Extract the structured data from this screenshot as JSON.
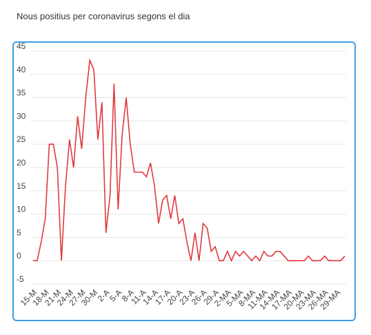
{
  "page_title": "Nous positius per coronavirus segons el dia",
  "chart_data": {
    "type": "line",
    "title": "Nous positius per coronavirus segons el dia",
    "xlabel": "",
    "ylabel": "",
    "ylim": [
      -5,
      45
    ],
    "yticks": [
      -5,
      0,
      5,
      10,
      15,
      20,
      25,
      30,
      35,
      40,
      45
    ],
    "grid": true,
    "line_color": "#e0383e",
    "frame_color": "#3b9ee8",
    "x_tick_labels": [
      "15-M",
      "18-M",
      "21-M",
      "24-M",
      "27-M",
      "30-M",
      "2-A",
      "5-A",
      "8-A",
      "11-A",
      "14-A",
      "17-A",
      "20-A",
      "23-A",
      "26-A",
      "29-A",
      "2-MA",
      "5-MA",
      "8-MA",
      "11-MA",
      "14-MA",
      "17-MA",
      "20-MA",
      "23-MA",
      "26-MA",
      "29-MA"
    ],
    "series": [
      {
        "values": [
          0,
          0,
          4,
          9,
          25,
          25,
          20,
          0,
          16,
          26,
          20,
          31,
          24,
          35,
          43,
          41,
          26,
          34,
          6,
          14,
          38,
          11,
          27,
          35,
          25,
          19,
          19,
          19,
          18,
          21,
          16,
          8,
          13,
          14,
          9,
          14,
          8,
          9,
          4,
          0,
          6,
          0,
          8,
          7,
          2,
          3,
          0,
          0,
          2,
          0,
          2,
          1,
          2,
          1,
          0,
          1,
          0,
          2,
          1,
          1,
          2,
          2,
          1,
          0,
          0,
          0,
          0,
          0,
          1,
          0,
          0,
          0,
          1,
          0,
          0,
          0,
          0,
          1
        ]
      }
    ]
  }
}
